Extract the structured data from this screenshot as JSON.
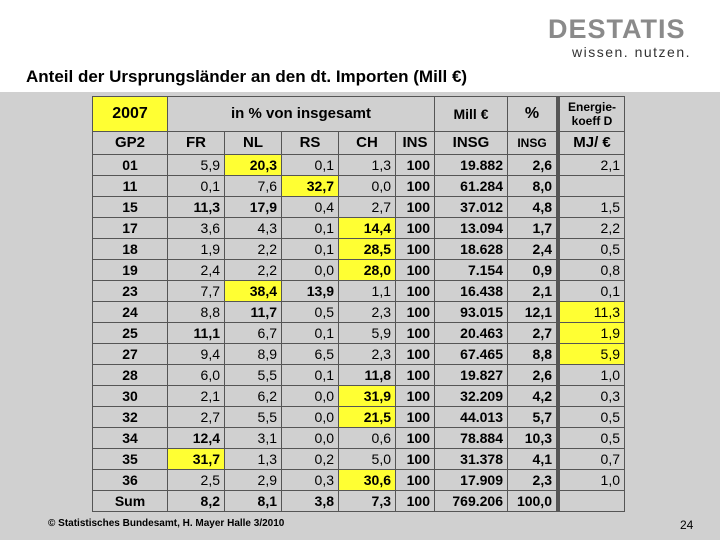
{
  "logo": {
    "word": "DESTATIS",
    "sub": "wissen. nutzen."
  },
  "title": "Anteil der Ursprungsländer an den dt. Importen (Mill €)",
  "header": {
    "year": "2007",
    "pct_label": "in % von insgesamt",
    "mill_label": "Mill €",
    "pct": "%",
    "energie": "Energie-koeff D"
  },
  "columns": [
    "GP2",
    "FR",
    "NL",
    "RS",
    "CH",
    "INS",
    "INSG",
    "INSG",
    "MJ/ €"
  ],
  "rows": [
    {
      "gp": "01",
      "fr": "5,9",
      "nl": "20,3",
      "rs": "0,1",
      "ch": "1,3",
      "ins": "100",
      "insg": "19.882",
      "p": "2,6",
      "mj": "2,1"
    },
    {
      "gp": "11",
      "fr": "0,1",
      "nl": "7,6",
      "rs": "32,7",
      "ch": "0,0",
      "ins": "100",
      "insg": "61.284",
      "p": "8,0",
      "mj": ""
    },
    {
      "gp": "15",
      "fr": "11,3",
      "nl": "17,9",
      "rs": "0,4",
      "ch": "2,7",
      "ins": "100",
      "insg": "37.012",
      "p": "4,8",
      "mj": "1,5"
    },
    {
      "gp": "17",
      "fr": "3,6",
      "nl": "4,3",
      "rs": "0,1",
      "ch": "14,4",
      "ins": "100",
      "insg": "13.094",
      "p": "1,7",
      "mj": "2,2"
    },
    {
      "gp": "18",
      "fr": "1,9",
      "nl": "2,2",
      "rs": "0,1",
      "ch": "28,5",
      "ins": "100",
      "insg": "18.628",
      "p": "2,4",
      "mj": "0,5"
    },
    {
      "gp": "19",
      "fr": "2,4",
      "nl": "2,2",
      "rs": "0,0",
      "ch": "28,0",
      "ins": "100",
      "insg": "7.154",
      "p": "0,9",
      "mj": "0,8"
    },
    {
      "gp": "23",
      "fr": "7,7",
      "nl": "38,4",
      "rs": "13,9",
      "ch": "1,1",
      "ins": "100",
      "insg": "16.438",
      "p": "2,1",
      "mj": "0,1"
    },
    {
      "gp": "24",
      "fr": "8,8",
      "nl": "11,7",
      "rs": "0,5",
      "ch": "2,3",
      "ins": "100",
      "insg": "93.015",
      "p": "12,1",
      "mj": "11,3"
    },
    {
      "gp": "25",
      "fr": "11,1",
      "nl": "6,7",
      "rs": "0,1",
      "ch": "5,9",
      "ins": "100",
      "insg": "20.463",
      "p": "2,7",
      "mj": "1,9"
    },
    {
      "gp": "27",
      "fr": "9,4",
      "nl": "8,9",
      "rs": "6,5",
      "ch": "2,3",
      "ins": "100",
      "insg": "67.465",
      "p": "8,8",
      "mj": "5,9"
    },
    {
      "gp": "28",
      "fr": "6,0",
      "nl": "5,5",
      "rs": "0,1",
      "ch": "11,8",
      "ins": "100",
      "insg": "19.827",
      "p": "2,6",
      "mj": "1,0"
    },
    {
      "gp": "30",
      "fr": "2,1",
      "nl": "6,2",
      "rs": "0,0",
      "ch": "31,9",
      "ins": "100",
      "insg": "32.209",
      "p": "4,2",
      "mj": "0,3"
    },
    {
      "gp": "32",
      "fr": "2,7",
      "nl": "5,5",
      "rs": "0,0",
      "ch": "21,5",
      "ins": "100",
      "insg": "44.013",
      "p": "5,7",
      "mj": "0,5"
    },
    {
      "gp": "34",
      "fr": "12,4",
      "nl": "3,1",
      "rs": "0,0",
      "ch": "0,6",
      "ins": "100",
      "insg": "78.884",
      "p": "10,3",
      "mj": "0,5"
    },
    {
      "gp": "35",
      "fr": "31,7",
      "nl": "1,3",
      "rs": "0,2",
      "ch": "5,0",
      "ins": "100",
      "insg": "31.378",
      "p": "4,1",
      "mj": "0,7"
    },
    {
      "gp": "36",
      "fr": "2,5",
      "nl": "2,9",
      "rs": "0,3",
      "ch": "30,6",
      "ins": "100",
      "insg": "17.909",
      "p": "2,3",
      "mj": "1,0"
    }
  ],
  "sum": {
    "label": "Sum",
    "fr": "8,2",
    "nl": "8,1",
    "rs": "3,8",
    "ch": "7,3",
    "ins": "100",
    "insg": "769.206",
    "p": "100,0",
    "mj": ""
  },
  "highlight_color": "#ffff33",
  "footer": "© Statistisches Bundesamt, H. Mayer Halle 3/2010",
  "page_number": "24"
}
